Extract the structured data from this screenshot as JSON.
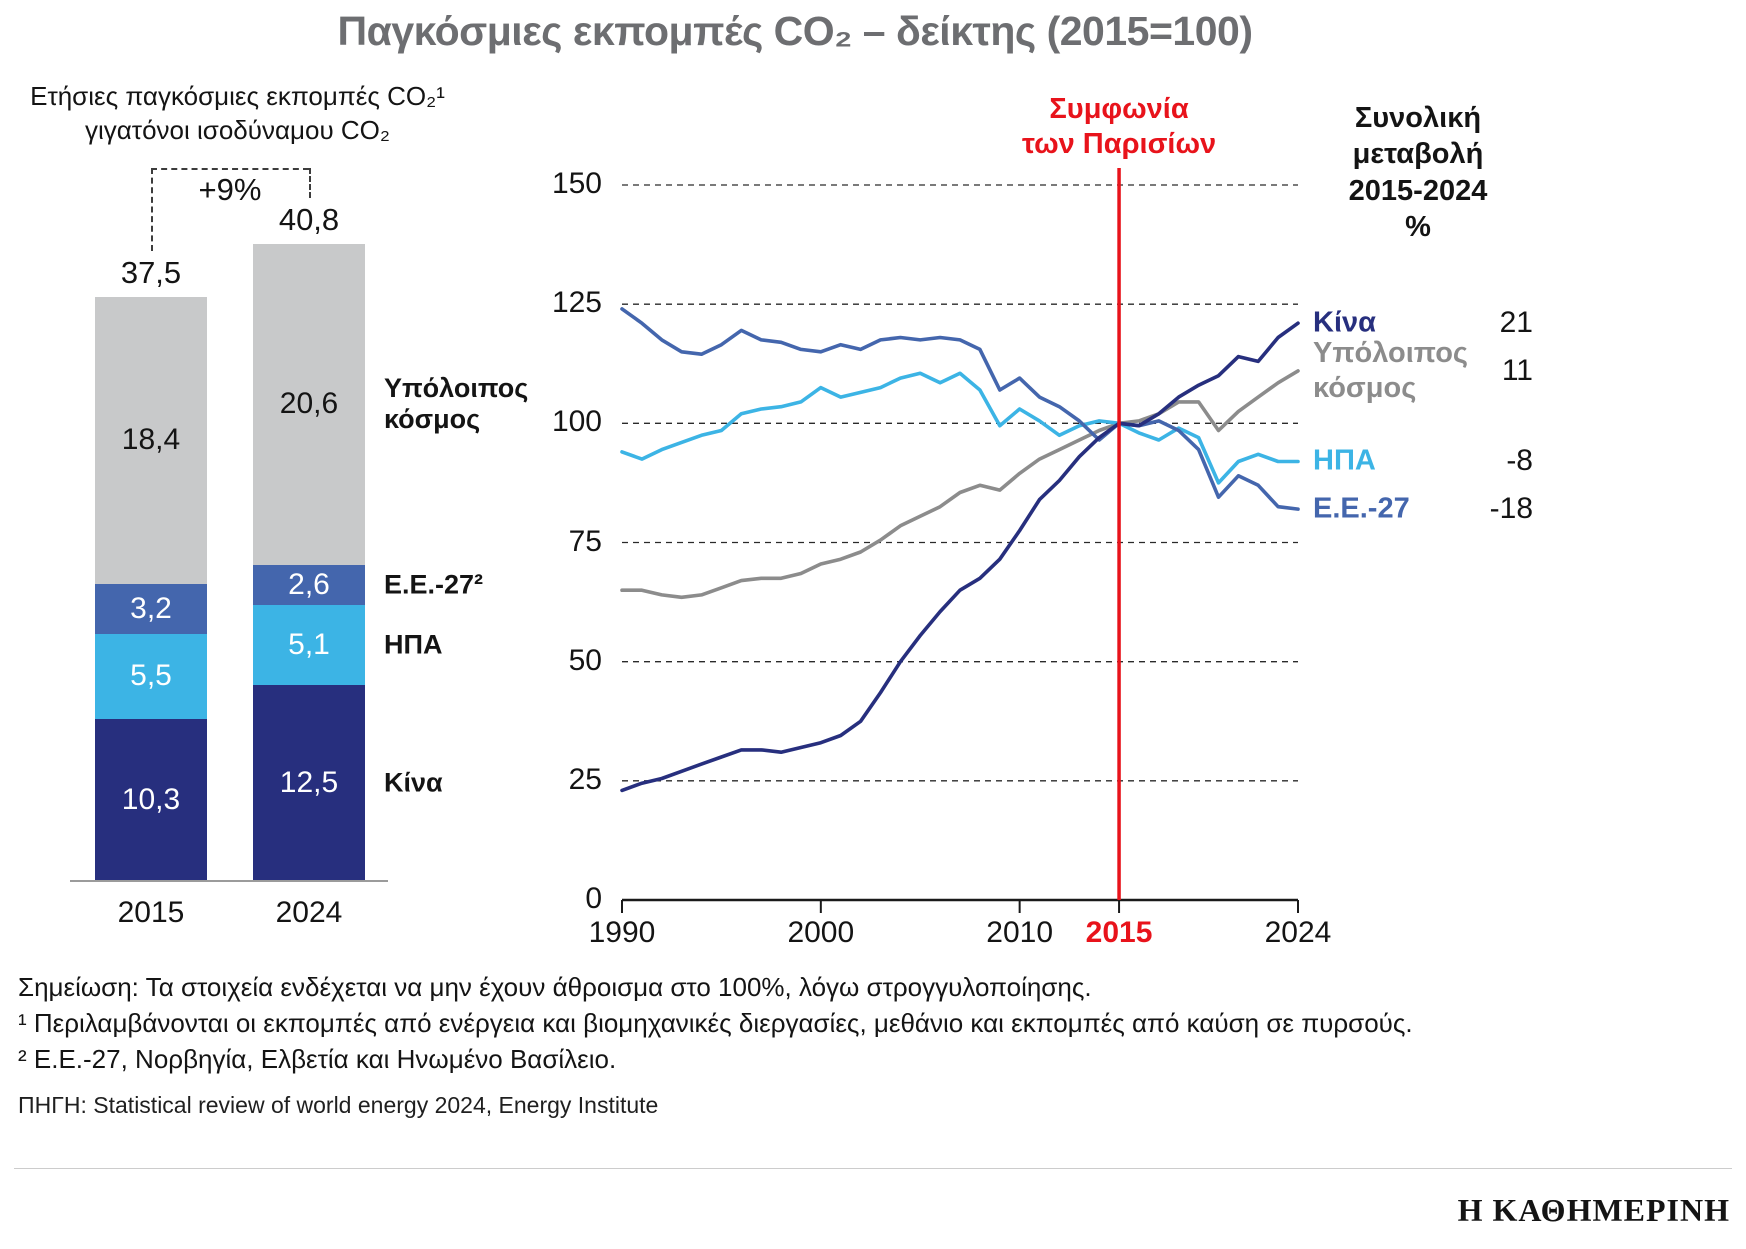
{
  "title": "Παγκόσμιες εκπομπές CO₂ – δείκτης (2015=100)",
  "chart_data": [
    {
      "type": "bar",
      "stacked": true,
      "title": "Ετήσιες παγκόσμιες εκπομπές CO₂¹\nγιγατόνοι ισοδύναμου CO₂",
      "categories": [
        "2015",
        "2024"
      ],
      "series": [
        {
          "name": "Κίνα",
          "color": "#272f7e",
          "values": [
            10.3,
            12.5
          ],
          "value_labels": [
            "10,3",
            "12,5"
          ],
          "value_label_color": "#ffffff"
        },
        {
          "name": "ΗΠΑ",
          "color": "#3cb4e5",
          "values": [
            5.5,
            5.1
          ],
          "value_labels": [
            "5,5",
            "5,1"
          ],
          "value_label_color": "#ffffff"
        },
        {
          "name": "Ε.Ε.-27²",
          "color": "#4466ad",
          "values": [
            3.2,
            2.6
          ],
          "value_labels": [
            "3,2",
            "2,6"
          ],
          "value_label_color": "#ffffff"
        },
        {
          "name": "Υπόλοιπος κόσμος",
          "color": "#c8c9ca",
          "values": [
            18.4,
            20.6
          ],
          "value_labels": [
            "18,4",
            "20,6"
          ],
          "value_label_color": "#141414"
        }
      ],
      "totals": [
        "37,5",
        "40,8"
      ],
      "change_annotation": "+9%"
    },
    {
      "type": "line",
      "ylim": [
        0,
        150
      ],
      "yticks": [
        0,
        25,
        50,
        75,
        100,
        125,
        150
      ],
      "xticks": [
        1990,
        2000,
        2010,
        2015,
        2024
      ],
      "x": [
        1990,
        1991,
        1992,
        1993,
        1994,
        1995,
        1996,
        1997,
        1998,
        1999,
        2000,
        2001,
        2002,
        2003,
        2004,
        2005,
        2006,
        2007,
        2008,
        2009,
        2010,
        2011,
        2012,
        2013,
        2014,
        2015,
        2016,
        2017,
        2018,
        2019,
        2020,
        2021,
        2022,
        2023,
        2024
      ],
      "series": [
        {
          "name": "Υπόλοιπος κόσμος",
          "color": "#8c8c8c",
          "change": "11",
          "values": [
            65,
            65,
            64,
            63.5,
            64,
            65.5,
            67,
            67.5,
            67.5,
            68.5,
            70.5,
            71.5,
            73,
            75.5,
            78.5,
            80.5,
            82.5,
            85.5,
            87,
            86,
            89.5,
            92.5,
            94.5,
            96.5,
            98.5,
            100,
            100.5,
            102,
            104.5,
            104.5,
            98.5,
            102.5,
            105.5,
            108.5,
            111
          ]
        },
        {
          "name": "ΗΠΑ",
          "color": "#3cb4e5",
          "change": "-8",
          "values": [
            94,
            92.5,
            94.5,
            96,
            97.5,
            98.5,
            102,
            103,
            103.5,
            104.5,
            107.5,
            105.5,
            106.5,
            107.5,
            109.5,
            110.5,
            108.5,
            110.5,
            107,
            99.5,
            103,
            100.5,
            97.5,
            99.5,
            100.5,
            100,
            98,
            96.5,
            99,
            97,
            87.5,
            92,
            93.5,
            92,
            92
          ]
        },
        {
          "name": "Ε.Ε.-27",
          "color": "#4466ad",
          "change": "-18",
          "values": [
            124,
            121,
            117.5,
            115,
            114.5,
            116.5,
            119.5,
            117.5,
            117,
            115.5,
            115,
            116.5,
            115.5,
            117.5,
            118,
            117.5,
            118,
            117.5,
            115.5,
            107,
            109.5,
            105.5,
            103.5,
            100.5,
            96.5,
            100,
            99.5,
            100.5,
            98.5,
            94.5,
            84.5,
            89,
            87,
            82.5,
            82
          ]
        },
        {
          "name": "Κίνα",
          "color": "#272f7e",
          "change": "21",
          "values": [
            23,
            24.5,
            25.5,
            27,
            28.5,
            30,
            31.5,
            31.5,
            31,
            32,
            33,
            34.5,
            37.5,
            43.5,
            50,
            55.5,
            60.5,
            65,
            67.5,
            71.5,
            77.5,
            84,
            88,
            93,
            97,
            100,
            99.5,
            102,
            105.5,
            108,
            110,
            114,
            113,
            118,
            121
          ]
        }
      ],
      "vline": {
        "x": 2015,
        "color": "#e8131b",
        "label": "Συμφωνία\nτων Παρισίων"
      },
      "right_header": "Συνολική\nμεταβολή\n2015-2024\n%",
      "grid": "dashed-horizontal",
      "legend_position": "right"
    }
  ],
  "footer": {
    "note": "Σημείωση: Τα στοιχεία ενδέχεται να μην έχουν άθροισμα στο 100%, λόγω στρογγυλοποίησης.",
    "footnote1": "¹ Περιλαμβάνονται οι εκπομπές από ενέργεια και βιομηχανικές διεργασίες, μεθάνιο και εκπομπές από καύση σε πυρσούς.",
    "footnote2": "² Ε.Ε.-27, Νορβηγία, Ελβετία και Ηνωμένο Βασίλειο.",
    "source": "ΠΗΓΗ: Statistical review of world energy 2024, Energy Institute",
    "logo": "Η ΚΑΘΗΜΕΡΙΝΗ"
  }
}
